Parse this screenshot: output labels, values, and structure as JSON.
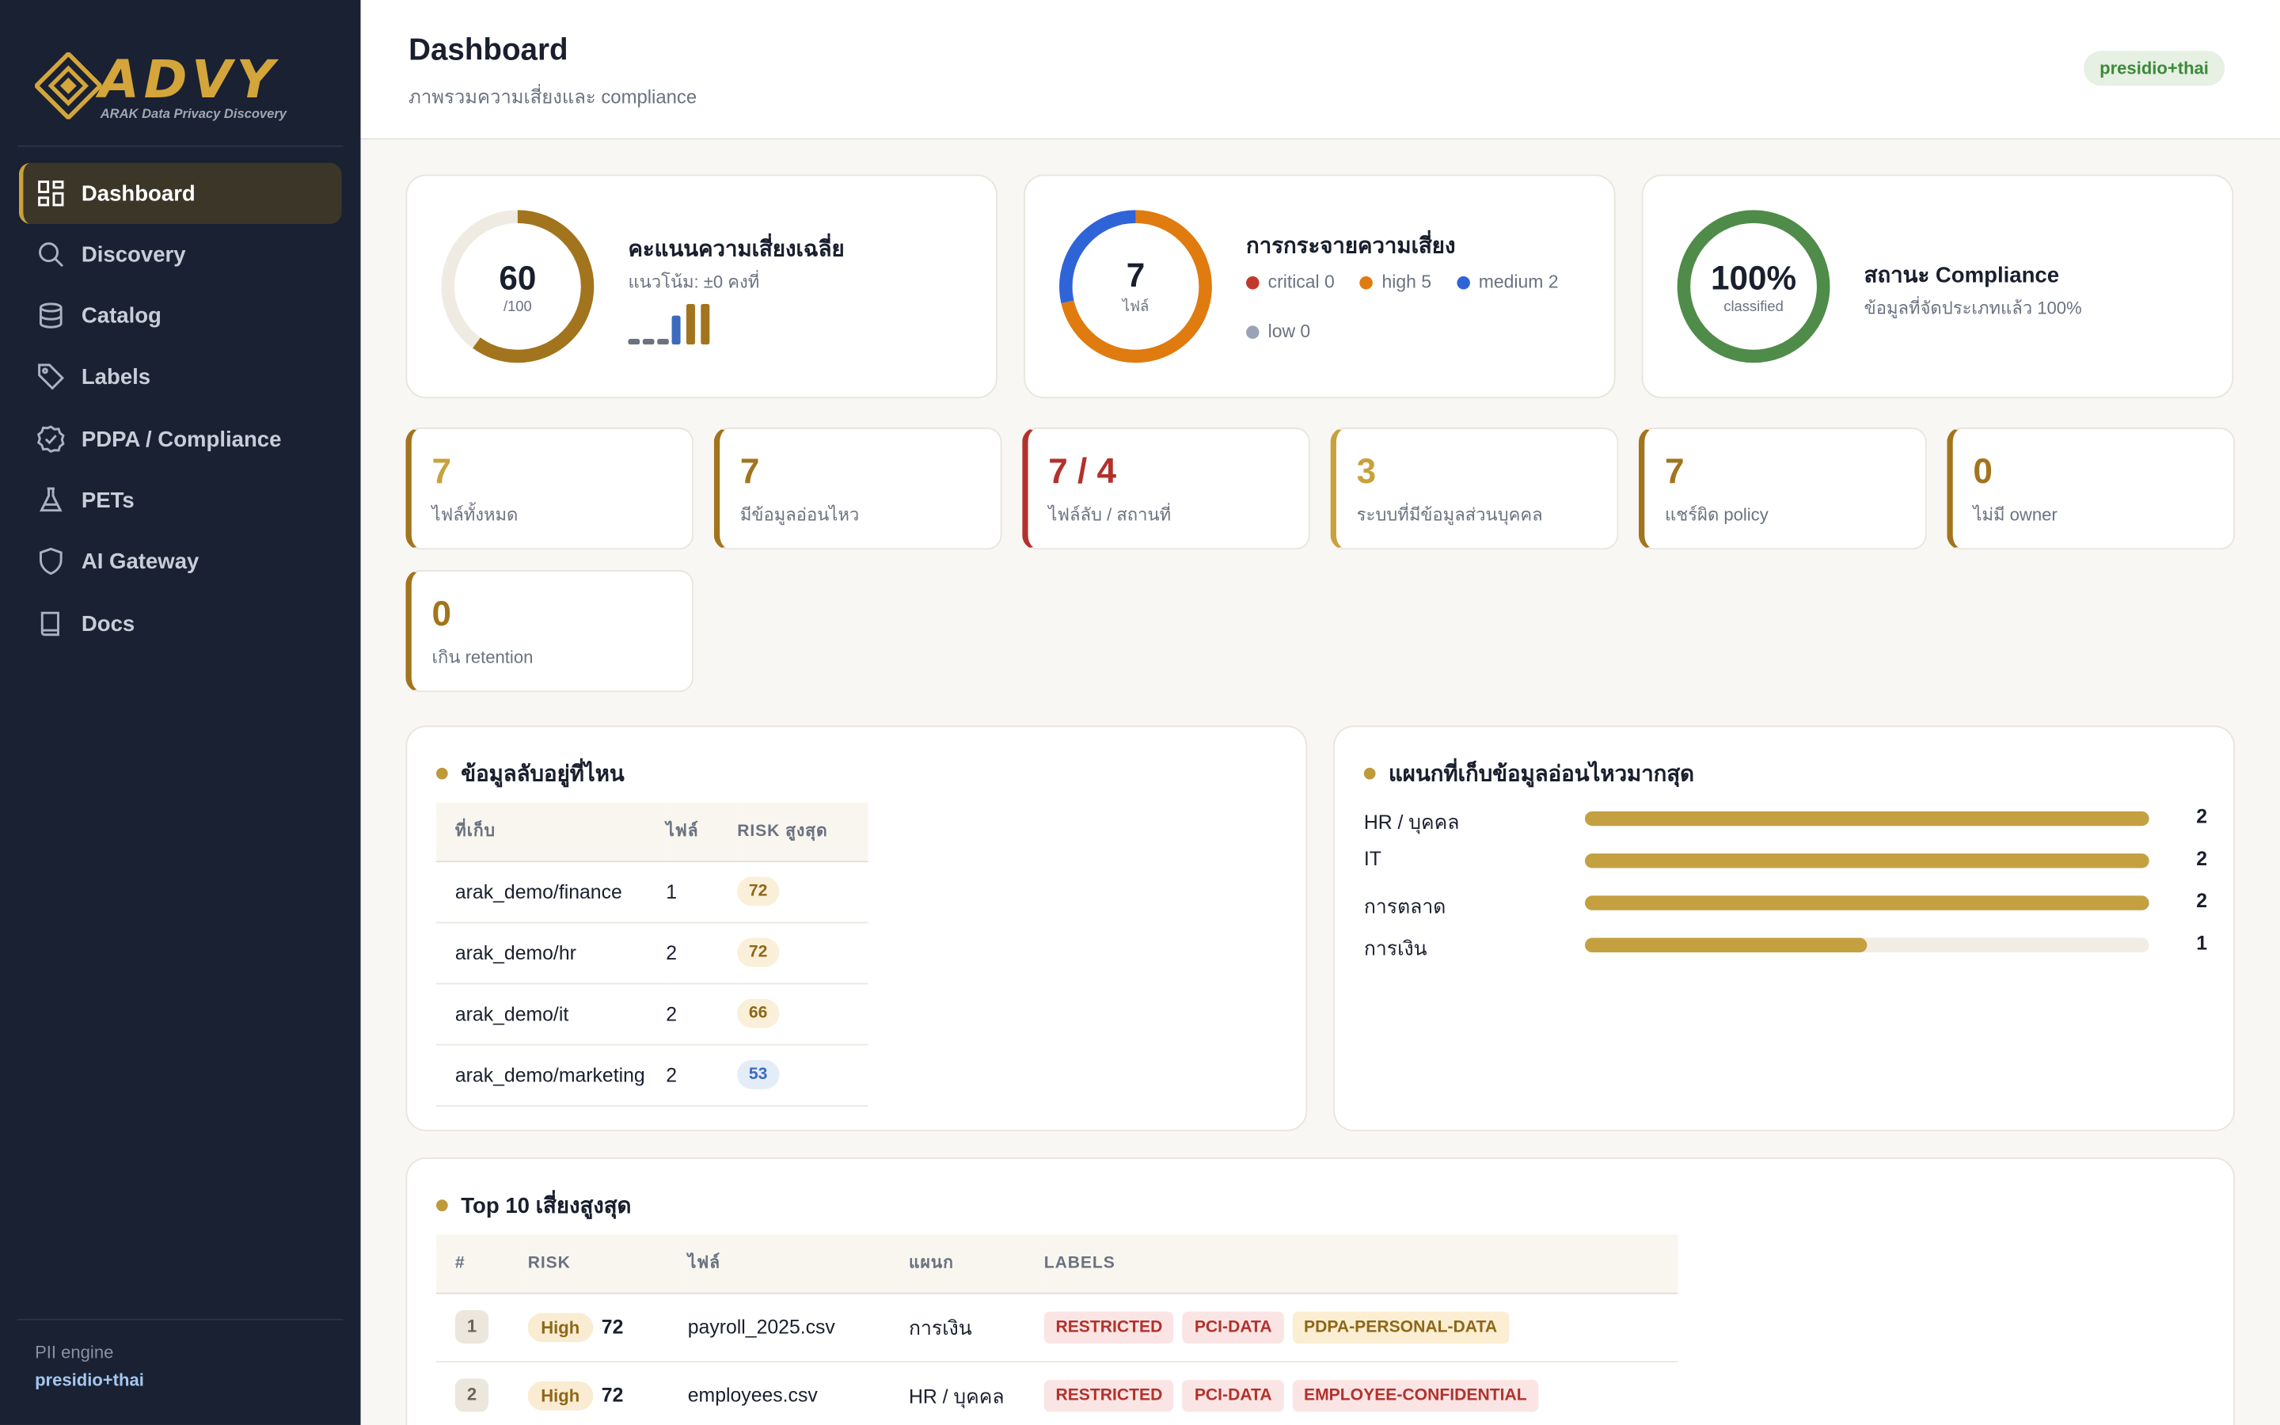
{
  "sidebar": {
    "logo_text": "ADVY",
    "logo_sub": "ARAK Data Privacy Discovery",
    "items": [
      {
        "label": "Dashboard",
        "icon": "dashboard-icon",
        "active": true
      },
      {
        "label": "Discovery",
        "icon": "search-icon"
      },
      {
        "label": "Catalog",
        "icon": "database-icon"
      },
      {
        "label": "Labels",
        "icon": "tag-icon"
      },
      {
        "label": "PDPA / Compliance",
        "icon": "check-badge-icon"
      },
      {
        "label": "PETs",
        "icon": "flask-icon"
      },
      {
        "label": "AI Gateway",
        "icon": "shield-icon"
      },
      {
        "label": "Docs",
        "icon": "book-icon"
      }
    ],
    "pii_engine_label": "PII engine",
    "pii_engine_value": "presidio+thai"
  },
  "header": {
    "title": "Dashboard",
    "subtitle": "ภาพรวมความเสี่ยงและ compliance",
    "engine_badge": "presidio+thai"
  },
  "colors": {
    "accent": "#c9a13c",
    "critical": "#c0392b",
    "high": "#e07b10",
    "medium": "#2f63d8",
    "low": "#9aa3b5",
    "compliance": "#4f8c4a"
  },
  "risk_score": {
    "value": "60",
    "max": "/100",
    "score_fraction": 0.6,
    "title": "คะแนนความเสี่ยงเฉลี่ย",
    "trend": "แนวโน้ม: ±0 คงที่",
    "history": [
      4,
      4,
      4,
      20,
      28,
      28
    ]
  },
  "risk_distribution": {
    "total": "7",
    "unit": "ไฟล์",
    "title": "การกระจายความเสี่ยง",
    "legend": [
      {
        "label": "critical 0",
        "value": 0,
        "color": "#c0392b"
      },
      {
        "label": "high 5",
        "value": 5,
        "color": "#e07b10"
      },
      {
        "label": "medium 2",
        "value": 2,
        "color": "#2f63d8"
      },
      {
        "label": "low 0",
        "value": 0,
        "color": "#9aa3b5"
      }
    ]
  },
  "compliance": {
    "value": "100%",
    "unit": "classified",
    "fraction": 1.0,
    "title": "สถานะ Compliance",
    "subtitle": "ข้อมูลที่จัดประเภทแล้ว 100%"
  },
  "stats": [
    {
      "value": "7",
      "label": "ไฟล์ทั้งหมด",
      "color": "#c9a13c"
    },
    {
      "value": "7",
      "label": "มีข้อมูลอ่อนไหว",
      "color": "#a2741d"
    },
    {
      "value": "7 / 4",
      "label": "ไฟล์ลับ / สถานที่",
      "color": "#b3312c"
    },
    {
      "value": "3",
      "label": "ระบบที่มีข้อมูลส่วนบุคคล",
      "color": "#c9a13c"
    },
    {
      "value": "7",
      "label": "แชร์ผิด policy",
      "color": "#a2741d"
    },
    {
      "value": "0",
      "label": "ไม่มี owner",
      "color": "#a2741d"
    },
    {
      "value": "0",
      "label": "เกิน retention",
      "color": "#a2741d"
    }
  ],
  "locations": {
    "title": "ข้อมูลลับอยู่ที่ไหน",
    "headers": [
      "ที่เก็บ",
      "ไฟล์",
      "RISK สูงสุด"
    ],
    "rows": [
      {
        "location": "arak_demo/finance",
        "files": "1",
        "risk": "72",
        "tone": "gold"
      },
      {
        "location": "arak_demo/hr",
        "files": "2",
        "risk": "72",
        "tone": "gold"
      },
      {
        "location": "arak_demo/it",
        "files": "2",
        "risk": "66",
        "tone": "gold"
      },
      {
        "location": "arak_demo/marketing",
        "files": "2",
        "risk": "53",
        "tone": "blue"
      }
    ]
  },
  "departments": {
    "title": "แผนกที่เก็บข้อมูลอ่อนไหวมากสุด",
    "max": 2,
    "rows": [
      {
        "label": "HR / บุคคล",
        "value": 2
      },
      {
        "label": "IT",
        "value": 2
      },
      {
        "label": "การตลาด",
        "value": 2
      },
      {
        "label": "การเงิน",
        "value": 1
      }
    ]
  },
  "top_risks": {
    "title": "Top 10 เสี่ยงสูงสุด",
    "headers": [
      "#",
      "RISK",
      "ไฟล์",
      "แผนก",
      "LABELS"
    ],
    "rows": [
      {
        "rank": "1",
        "level": "High",
        "score": "72",
        "file": "payroll_2025.csv",
        "dept": "การเงิน",
        "labels": [
          {
            "text": "RESTRICTED",
            "tone": "red"
          },
          {
            "text": "PCI-DATA",
            "tone": "red"
          },
          {
            "text": "PDPA-PERSONAL-DATA",
            "tone": "gold"
          }
        ]
      },
      {
        "rank": "2",
        "level": "High",
        "score": "72",
        "file": "employees.csv",
        "dept": "HR / บุคคล",
        "labels": [
          {
            "text": "RESTRICTED",
            "tone": "red"
          },
          {
            "text": "PCI-DATA",
            "tone": "red"
          },
          {
            "text": "EMPLOYEE-CONFIDENTIAL",
            "tone": "red"
          }
        ]
      }
    ]
  }
}
